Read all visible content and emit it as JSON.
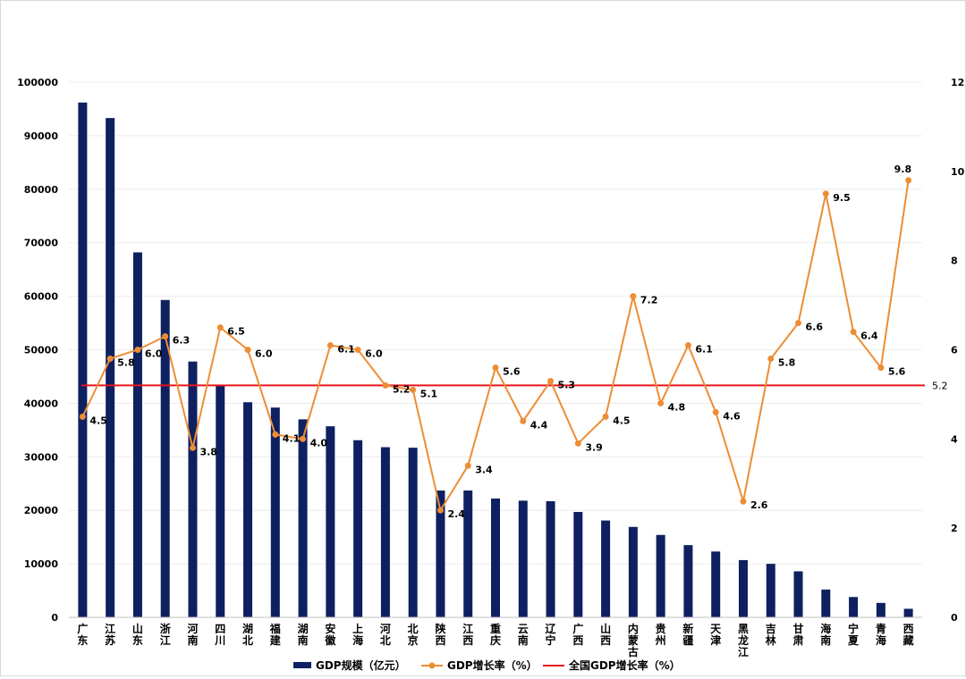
{
  "chart_data": {
    "type": "bar",
    "categories": [
      "广东",
      "江苏",
      "山东",
      "浙江",
      "河南",
      "四川",
      "湖北",
      "福建",
      "湖南",
      "安徽",
      "上海",
      "河北",
      "北京",
      "陕西",
      "江西",
      "重庆",
      "云南",
      "辽宁",
      "广西",
      "山西",
      "内蒙古",
      "贵州",
      "新疆",
      "天津",
      "黑龙江",
      "吉林",
      "甘肃",
      "海南",
      "宁夏",
      "青海",
      "西藏"
    ],
    "series": [
      {
        "name": "GDP规模（亿元）",
        "type": "bar",
        "axis": "left",
        "color": "#0e2060",
        "values": [
          96200,
          93300,
          68200,
          59300,
          47800,
          43300,
          40200,
          39200,
          37000,
          35700,
          33100,
          31800,
          31700,
          23700,
          23700,
          22200,
          21800,
          21700,
          19700,
          18100,
          16900,
          15400,
          13500,
          12300,
          10700,
          10000,
          8600,
          5200,
          3800,
          2700,
          1600
        ]
      },
      {
        "name": "GDP增长率（%）",
        "type": "line",
        "axis": "right",
        "color": "#ed8d35",
        "values": [
          4.5,
          5.8,
          6.0,
          6.3,
          3.8,
          6.5,
          6.0,
          4.1,
          4.0,
          6.1,
          6.0,
          5.2,
          5.1,
          2.4,
          3.4,
          5.6,
          4.4,
          5.3,
          3.9,
          4.5,
          7.2,
          4.8,
          6.1,
          4.6,
          2.6,
          5.8,
          6.6,
          9.5,
          6.4,
          5.6,
          9.8
        ],
        "labels": [
          "4.5",
          "5.8",
          "6.0",
          "6.3",
          "3.8",
          "6.5",
          "6.0",
          "4.1",
          "4.0",
          "6.1",
          "6.0",
          "5.2",
          "5.1",
          "2.4",
          "3.4",
          "5.6",
          "4.4",
          "5.3",
          "3.9",
          "4.5",
          "7.2",
          "4.8",
          "6.1",
          "4.6",
          "2.6",
          "5.8",
          "6.6",
          "9.5",
          "6.4",
          "5.6",
          "9.8"
        ]
      },
      {
        "name": "全国GDP增长率（%）",
        "type": "reference-line",
        "axis": "right",
        "color": "#e8141b",
        "value": 5.2,
        "label": "5.2"
      }
    ],
    "left_axis": {
      "ylim": [
        0,
        100000
      ],
      "ticks": [
        "0",
        "10000",
        "20000",
        "30000",
        "40000",
        "50000",
        "60000",
        "70000",
        "80000",
        "90000",
        "100000"
      ]
    },
    "right_axis": {
      "ylim": [
        0,
        12
      ],
      "ticks": [
        "0",
        "2",
        "4",
        "6",
        "8",
        "10",
        "12"
      ]
    },
    "grid": true,
    "legend": "bottom"
  }
}
